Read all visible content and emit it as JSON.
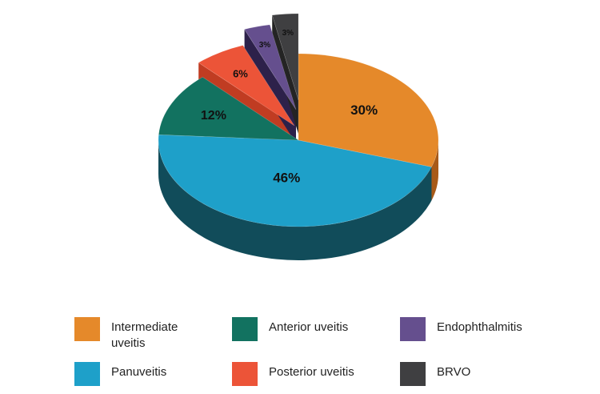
{
  "chart_data": {
    "type": "pie",
    "style": "3d-exploded",
    "slices": [
      {
        "label": "Intermediate uveitis",
        "value": 30,
        "display": "30%",
        "color": "#e5892a",
        "side": "#a85a18"
      },
      {
        "label": "Panuveitis",
        "value": 46,
        "display": "46%",
        "color": "#1ea0c9",
        "side": "#114c5a"
      },
      {
        "label": "Anterior uveitis",
        "value": 12,
        "display": "12%",
        "color": "#127260",
        "side": "#0b3c34"
      },
      {
        "label": "Posterior uveitis",
        "value": 6,
        "display": "6%",
        "color": "#ec5438",
        "side": "#c03c22"
      },
      {
        "label": "Endophthalmitis",
        "value": 3,
        "display": "3%",
        "color": "#654f8e",
        "side": "#2d214a"
      },
      {
        "label": "BRVO",
        "value": 3,
        "display": "3%",
        "color": "#3f3f41",
        "side": "#242424"
      }
    ],
    "legend": {
      "position": "bottom",
      "order": [
        "Intermediate uveitis",
        "Anterior uveitis",
        "Endophthalmitis",
        "Panuveitis",
        "Posterior uveitis",
        "BRVO"
      ]
    }
  }
}
